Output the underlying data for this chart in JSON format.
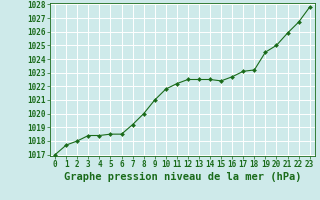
{
  "x": [
    0,
    1,
    2,
    3,
    4,
    5,
    6,
    7,
    8,
    9,
    10,
    11,
    12,
    13,
    14,
    15,
    16,
    17,
    18,
    19,
    20,
    21,
    22,
    23
  ],
  "y": [
    1017.0,
    1017.7,
    1018.0,
    1018.4,
    1018.4,
    1018.5,
    1018.5,
    1019.2,
    1020.0,
    1021.0,
    1021.8,
    1022.2,
    1022.5,
    1022.5,
    1022.5,
    1022.4,
    1022.7,
    1023.1,
    1023.2,
    1024.5,
    1025.0,
    1025.9,
    1026.7,
    1027.8
  ],
  "ylim": [
    1017,
    1028
  ],
  "yticks": [
    1017,
    1018,
    1019,
    1020,
    1021,
    1022,
    1023,
    1024,
    1025,
    1026,
    1027,
    1028
  ],
  "xlim": [
    0,
    23
  ],
  "xticks": [
    0,
    1,
    2,
    3,
    4,
    5,
    6,
    7,
    8,
    9,
    10,
    11,
    12,
    13,
    14,
    15,
    16,
    17,
    18,
    19,
    20,
    21,
    22,
    23
  ],
  "xlabel": "Graphe pression niveau de la mer (hPa)",
  "line_color": "#1a6b1a",
  "marker": "D",
  "marker_size": 2.0,
  "bg_color": "#ceeaea",
  "grid_color": "#ffffff",
  "tick_label_color": "#1a6b1a",
  "xlabel_color": "#1a6b1a",
  "tick_fontsize": 5.5,
  "xlabel_fontsize": 7.5
}
